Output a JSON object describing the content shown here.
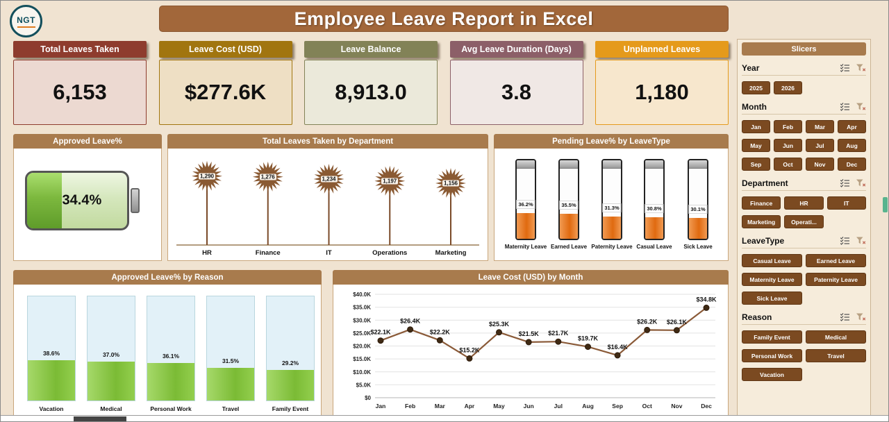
{
  "header": {
    "title": "Employee Leave Report in Excel",
    "logo_text": "NGT",
    "banner_color": "#a2673a"
  },
  "kpis": [
    {
      "label": "Total Leaves Taken",
      "value": "6,153",
      "header_color": "#8e3c2e",
      "body_color": "#ecd9d1"
    },
    {
      "label": "Leave Cost (USD)",
      "value": "$277.6K",
      "header_color": "#a1750f",
      "body_color": "#eedfc4"
    },
    {
      "label": "Leave Balance",
      "value": "8,913.0",
      "header_color": "#828257",
      "body_color": "#ebe9da"
    },
    {
      "label": "Avg Leave Duration (Days)",
      "value": "3.8",
      "header_color": "#8c5f68",
      "body_color": "#f0e8e5"
    },
    {
      "label": "Unplanned Leaves",
      "value": "1,180",
      "header_color": "#e59a1b",
      "body_color": "#f7e7cd"
    }
  ],
  "panels": {
    "approved": {
      "title": "Approved Leave%"
    },
    "department": {
      "title": "Total Leaves Taken by Department"
    },
    "pending": {
      "title": "Pending Leave% by LeaveType"
    },
    "reason": {
      "title": "Approved Leave% by Reason"
    },
    "cost": {
      "title": "Leave Cost (USD) by Month"
    }
  },
  "chart_data": [
    {
      "type": "gauge",
      "title": "Approved Leave%",
      "value": 34.4,
      "display": "34.4%",
      "max": 100,
      "color": "#7cb83e"
    },
    {
      "type": "lollipop",
      "title": "Total Leaves Taken by Department",
      "categories": [
        "HR",
        "Finance",
        "IT",
        "Operations",
        "Marketing"
      ],
      "values": [
        1290,
        1276,
        1234,
        1197,
        1156
      ],
      "labels": [
        "1,290",
        "1,276",
        "1,234",
        "1,197",
        "1,156"
      ],
      "ylim": [
        0,
        1400
      ],
      "color": "#8a5a33"
    },
    {
      "type": "column-gauge",
      "title": "Pending Leave% by LeaveType",
      "categories": [
        "Maternity Leave",
        "Earned Leave",
        "Paternity Leave",
        "Casual Leave",
        "Sick Leave"
      ],
      "values": [
        36.2,
        35.5,
        31.3,
        30.8,
        30.1
      ],
      "labels": [
        "36.2%",
        "35.5%",
        "31.3%",
        "30.8%",
        "30.1%"
      ],
      "max": 100,
      "color": "#e4731c"
    },
    {
      "type": "column-gauge",
      "title": "Approved Leave% by Reason",
      "categories": [
        "Vacation",
        "Medical",
        "Personal Work",
        "Travel",
        "Family Event"
      ],
      "values": [
        38.6,
        37.0,
        36.1,
        31.5,
        29.2
      ],
      "labels": [
        "38.6%",
        "37.0%",
        "36.1%",
        "31.5%",
        "29.2%"
      ],
      "max": 100,
      "color": "#85c440"
    },
    {
      "type": "line",
      "title": "Leave Cost (USD) by Month",
      "x": [
        "Jan",
        "Feb",
        "Mar",
        "Apr",
        "May",
        "Jun",
        "Jul",
        "Aug",
        "Sep",
        "Oct",
        "Nov",
        "Dec"
      ],
      "values": [
        22.1,
        26.4,
        22.2,
        15.2,
        25.3,
        21.5,
        21.7,
        19.7,
        16.4,
        26.2,
        26.1,
        34.8
      ],
      "labels": [
        "$22.1K",
        "$26.4K",
        "$22.2K",
        "$15.2K",
        "$25.3K",
        "$21.5K",
        "$21.7K",
        "$19.7K",
        "$16.4K",
        "$26.2K",
        "$26.1K",
        "$34.8K"
      ],
      "ylim": [
        0,
        40
      ],
      "yticks": [
        "$0",
        "$5.0K",
        "$10.0K",
        "$15.0K",
        "$20.0K",
        "$25.0K",
        "$30.0K",
        "$35.0K",
        "$40.0K"
      ],
      "grid": true,
      "color": "#8a5a38"
    }
  ],
  "slicers": {
    "title": "Slicers",
    "button_color": "#7b4a21",
    "groups": [
      {
        "name": "Year",
        "cols": 4,
        "items": [
          "2025",
          "2026"
        ]
      },
      {
        "name": "Month",
        "cols": 4,
        "items": [
          "Jan",
          "Feb",
          "Mar",
          "Apr",
          "May",
          "Jun",
          "Jul",
          "Aug",
          "Sep",
          "Oct",
          "Nov",
          "Dec"
        ]
      },
      {
        "name": "Department",
        "cols": 3,
        "items": [
          "Finance",
          "HR",
          "IT",
          "Marketing",
          "Operati..."
        ]
      },
      {
        "name": "LeaveType",
        "cols": 2,
        "items": [
          "Casual Leave",
          "Earned Leave",
          "Maternity Leave",
          "Paternity Leave",
          "Sick Leave"
        ]
      },
      {
        "name": "Reason",
        "cols": 2,
        "items": [
          "Family Event",
          "Medical",
          "Personal Work",
          "Travel",
          "Vacation"
        ]
      }
    ]
  }
}
